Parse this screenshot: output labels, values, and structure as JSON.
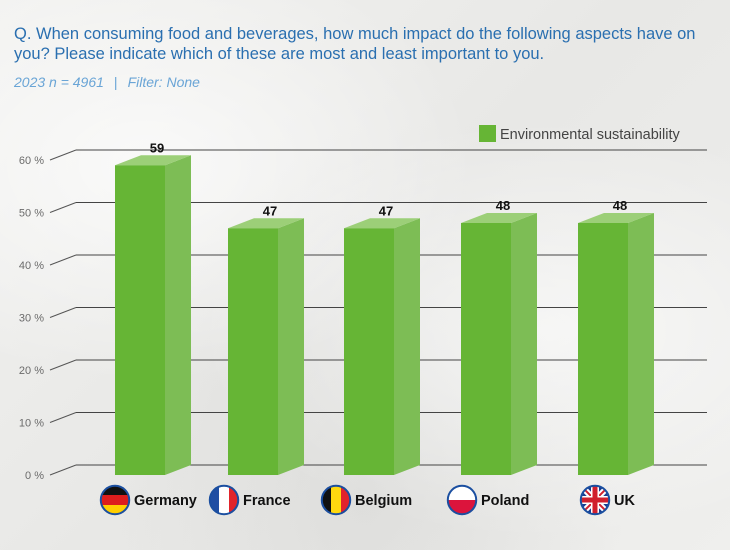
{
  "header": {
    "question": "Q. When consuming food and beverages, how much impact do the following aspects have on you? Please indicate which of these are most and least important to you.",
    "sample": "2023 n = 4961",
    "separator": "|",
    "filter": "Filter: None"
  },
  "colors": {
    "bar_front": "#66b535",
    "bar_side": "#7dbd55",
    "bar_top": "#9ccf78",
    "text_blue": "#2a6fb0",
    "meta_blue": "#6aa5d6",
    "axis_label": "#6b6b6b"
  },
  "chart_data": {
    "type": "bar",
    "title": "",
    "xlabel": "",
    "ylabel": "",
    "ylim": [
      0,
      60
    ],
    "yticks": [
      0,
      10,
      20,
      30,
      40,
      50,
      60
    ],
    "ytick_labels": [
      "0 %",
      "10 %",
      "20 %",
      "30 %",
      "40 %",
      "50 %",
      "60 %"
    ],
    "categories": [
      "Germany",
      "France",
      "Belgium",
      "Poland",
      "UK"
    ],
    "flags": [
      "germany-flag-icon",
      "france-flag-icon",
      "belgium-flag-icon",
      "poland-flag-icon",
      "uk-flag-icon"
    ],
    "series": [
      {
        "name": "Environmental sustainability",
        "values": [
          59,
          47,
          47,
          48,
          48
        ]
      }
    ],
    "legend_position": "top-right",
    "grid": true
  }
}
